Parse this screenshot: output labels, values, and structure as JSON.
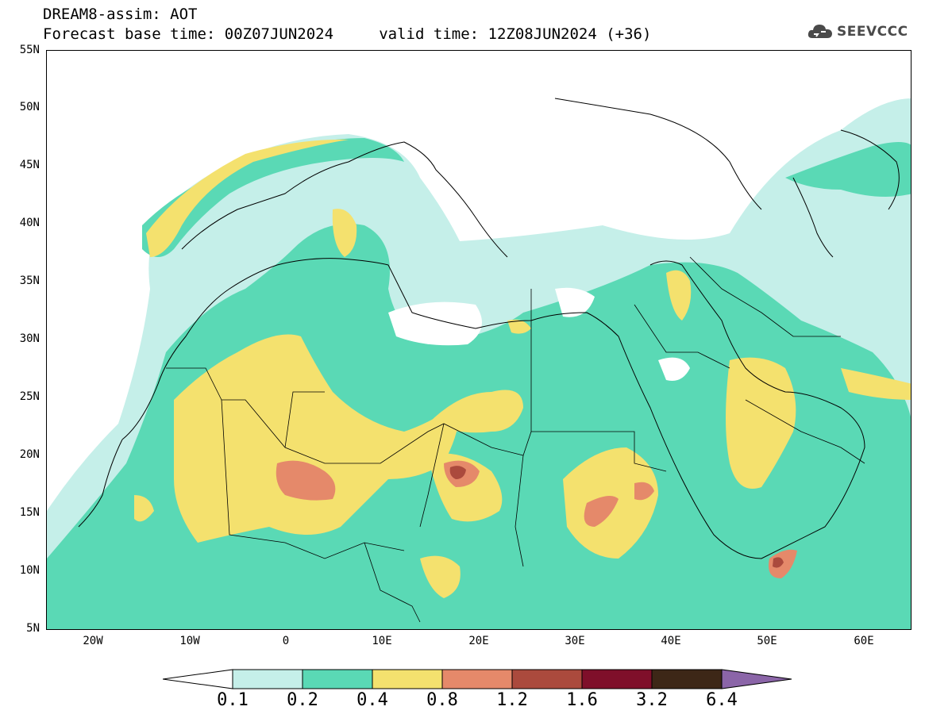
{
  "title": {
    "line1": "DREAM8-assim: AOT",
    "line2": "Forecast base time: 00Z07JUN2024     valid time: 12Z08JUN2024 (+36)"
  },
  "logo": {
    "text": "SEEVCCC",
    "icon": "cloud-icon",
    "color": "#4a4a4a"
  },
  "lat_labels": [
    "55N",
    "50N",
    "45N",
    "40N",
    "35N",
    "30N",
    "25N",
    "20N",
    "15N",
    "10N",
    "5N"
  ],
  "lon_labels": [
    "20W",
    "10W",
    "0",
    "10E",
    "20E",
    "30E",
    "40E",
    "50E",
    "60E"
  ],
  "colorbar": {
    "colors": [
      "#ffffff",
      "#c5efe9",
      "#5ad9b5",
      "#f4e16e",
      "#e5896a",
      "#ab4a3d",
      "#7f0f2a",
      "#3d2717",
      "#8b65a8"
    ],
    "labels": [
      "0.1",
      "0.2",
      "0.4",
      "0.8",
      "1.2",
      "1.6",
      "3.2",
      "6.4"
    ]
  }
}
